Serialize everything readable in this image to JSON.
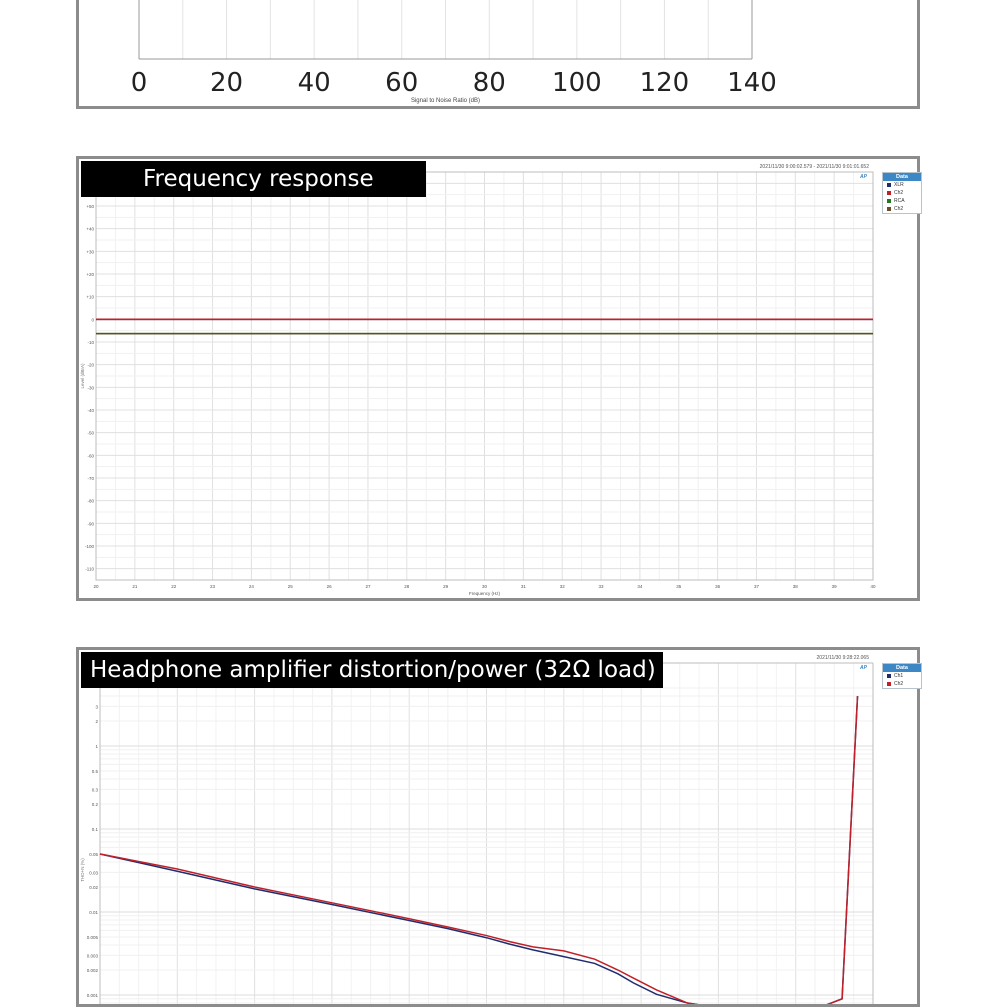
{
  "panels": {
    "snr": {
      "chart_data": {
        "type": "bar",
        "xlabel": "Signal to Noise Ratio (dB)",
        "xlim": [
          0,
          140
        ],
        "tick_labels": [
          "0",
          "20",
          "40",
          "60",
          "80",
          "100",
          "120",
          "140"
        ],
        "grid": true
      }
    },
    "fr": {
      "title": "Frequency response",
      "timestamp": "2021/11/30 9:00:02.579 -  2021/11/30 9:01:01.652",
      "logo": "AP",
      "chart_data": {
        "type": "line",
        "xlabel": "Frequency (Hz)",
        "ylabel": "Level (dBrA)",
        "xlim": [
          20,
          40
        ],
        "x_ticks": [
          "20",
          "21",
          "22",
          "23",
          "24",
          "25",
          "26",
          "27",
          "28",
          "29",
          "30",
          "31",
          "32",
          "33",
          "34",
          "35",
          "36",
          "37",
          "38",
          "39",
          "40"
        ],
        "ylim": [
          -115,
          65
        ],
        "y_ticks": [
          "+60",
          "+50",
          "+40",
          "+30",
          "+20",
          "+10",
          "0",
          "-10",
          "-20",
          "-30",
          "-40",
          "-50",
          "-60",
          "-70",
          "-80",
          "-90",
          "-100",
          "-110"
        ],
        "legend_title": "Data",
        "legend_position": "right",
        "grid": true,
        "series": [
          {
            "name": "XLR",
            "color": "#1f2d6e",
            "x": [
              20,
              40
            ],
            "y": [
              0,
              0
            ]
          },
          {
            "name": "Ch2",
            "color": "#c0202a",
            "x": [
              20,
              40
            ],
            "y": [
              0,
              0
            ]
          },
          {
            "name": "RCA",
            "color": "#1e7a1e",
            "x": [
              20,
              40
            ],
            "y": [
              -6.3,
              -6.3
            ]
          },
          {
            "name": "Ch2",
            "color": "#6b4a2a",
            "x": [
              20,
              40
            ],
            "y": [
              -6.3,
              -6.3
            ]
          }
        ]
      }
    },
    "thd": {
      "title": "Headphone amplifier distortion/power (32Ω load)",
      "timestamp": "2021/11/30 9:28:22.065",
      "logo": "AP",
      "chart_data": {
        "type": "line",
        "ylabel": "THD+N (%)",
        "y_scale": "log",
        "y_ticks": [
          "3",
          "2",
          "1",
          "0.5",
          "0.3",
          "0.2",
          "0.1",
          "0.05",
          "0.03",
          "0.02",
          "0.01",
          "0.005",
          "0.003",
          "0.002",
          "0.001"
        ],
        "ylim": [
          0.0008,
          5
        ],
        "xlim": [
          0,
          100
        ],
        "legend_title": "Data",
        "legend_position": "right",
        "grid": true,
        "series": [
          {
            "name": "Ch1",
            "color": "#1f2d6e",
            "x": [
              0,
              10,
              20,
              30,
              40,
              45,
              50,
              53,
              56,
              60,
              64,
              67,
              69,
              72,
              76,
              80,
              84,
              88,
              91,
              93,
              96,
              98
            ],
            "y": [
              0.05,
              0.031,
              0.019,
              0.0123,
              0.0079,
              0.0063,
              0.0049,
              0.0041,
              0.0035,
              0.0029,
              0.0024,
              0.0018,
              0.0014,
              0.00102,
              0.0008,
              0.0007,
              0.0007,
              0.0007,
              0.0007,
              0.0007,
              0.0009,
              4.0
            ]
          },
          {
            "name": "Ch2",
            "color": "#c0202a",
            "x": [
              0,
              10,
              20,
              30,
              40,
              45,
              50,
              53,
              56,
              60,
              64,
              67,
              69,
              72,
              76,
              80,
              84,
              88,
              91,
              93,
              96,
              98
            ],
            "y": [
              0.05,
              0.033,
              0.02,
              0.0129,
              0.0083,
              0.0066,
              0.0052,
              0.0044,
              0.0038,
              0.0034,
              0.0027,
              0.002,
              0.0016,
              0.00115,
              0.0008,
              0.0007,
              0.0007,
              0.0007,
              0.0007,
              0.0007,
              0.0009,
              4.0
            ]
          }
        ]
      }
    }
  }
}
